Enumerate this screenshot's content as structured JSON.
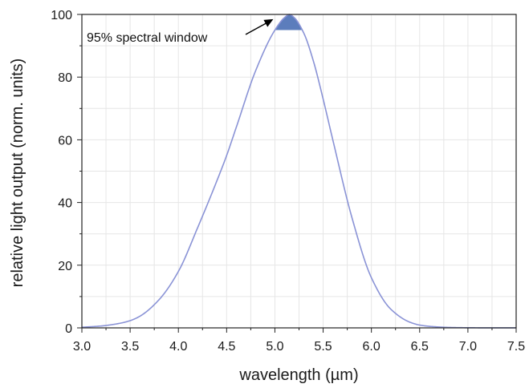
{
  "chart_data": {
    "type": "line",
    "title": "",
    "xlabel": "wavelength (µm)",
    "ylabel": "relative light output (norm. units)",
    "xlim": [
      3.0,
      7.5
    ],
    "ylim": [
      0,
      100
    ],
    "xticks": [
      "3.0",
      "3.5",
      "4.0",
      "4.5",
      "5.0",
      "5.5",
      "6.0",
      "6.5",
      "7.0",
      "7.5"
    ],
    "yticks": [
      "0",
      "20",
      "40",
      "60",
      "80",
      "100"
    ],
    "grid": true,
    "legend": "none",
    "series": [
      {
        "color": "#8a93d6",
        "x": [
          3.0,
          3.2,
          3.4,
          3.5,
          3.6,
          3.8,
          4.0,
          4.2,
          4.4,
          4.5,
          4.6,
          4.8,
          5.0,
          5.1,
          5.15,
          5.2,
          5.3,
          5.4,
          5.5,
          5.6,
          5.8,
          6.0,
          6.2,
          6.4,
          6.5,
          6.6,
          6.8,
          7.0,
          7.2,
          7.5
        ],
        "y": [
          0.2,
          0.6,
          1.5,
          2.3,
          3.7,
          9,
          18,
          32,
          47,
          55,
          64,
          82,
          95,
          99,
          100,
          99,
          94,
          85,
          73,
          60,
          35,
          16,
          6,
          1.8,
          0.9,
          0.5,
          0.15,
          0.05,
          0.02,
          0.01
        ]
      }
    ],
    "annotation": {
      "text": "95% spectral window",
      "threshold": 95,
      "fill_color": "#4a6fb5"
    }
  }
}
